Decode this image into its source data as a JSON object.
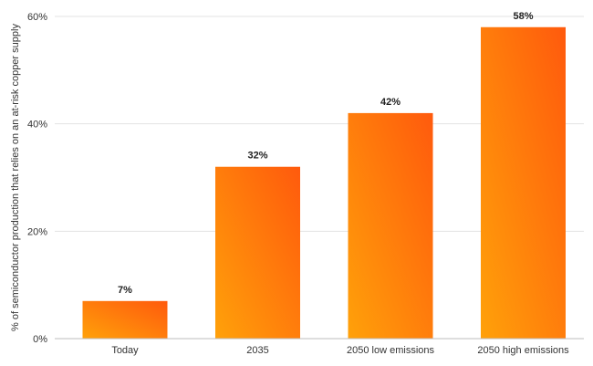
{
  "chart_data": {
    "type": "bar",
    "categories": [
      "Today",
      "2035",
      "2050 low emissions",
      "2050 high emissions"
    ],
    "values": [
      7,
      32,
      42,
      58
    ],
    "value_labels": [
      "7%",
      "32%",
      "42%",
      "58%"
    ],
    "title": "",
    "xlabel": "",
    "ylabel": "% of semiconductor production that relies on an at-risk copper supply",
    "ylim": [
      0,
      60
    ],
    "yticks": [
      0,
      20,
      40,
      60
    ],
    "ytick_labels": [
      "0%",
      "20%",
      "40%",
      "60%"
    ],
    "grid": true,
    "bar_gradient": {
      "top": "#ff5a0d",
      "bottom": "#ffa10a"
    },
    "legend": "none"
  }
}
